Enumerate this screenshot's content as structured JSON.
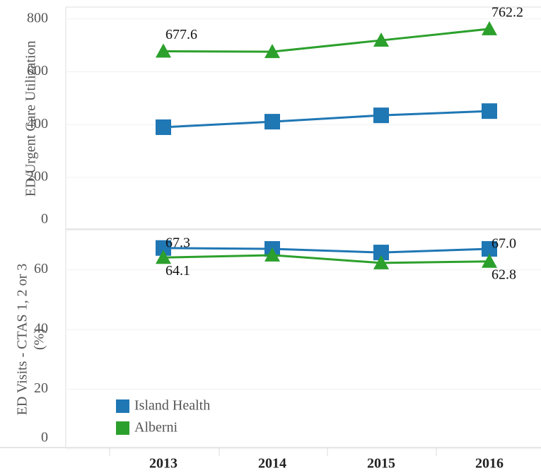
{
  "chart_data": [
    {
      "type": "line",
      "y_label": [
        "ED/Urgent Care Utilization"
      ],
      "ylim": [
        0,
        845
      ],
      "yticks": [
        0,
        200,
        400,
        600,
        800
      ],
      "grid": true,
      "series": [
        {
          "color": "#1f77b4",
          "marker": "square",
          "values": [
            390,
            411,
            435,
            451
          ],
          "value_labels": [
            null,
            null,
            null,
            null
          ]
        },
        {
          "color": "#2ca02c",
          "marker": "triangle",
          "values": [
            677.6,
            676,
            719,
            762.2
          ],
          "value_labels": [
            "677.6",
            null,
            null,
            "762.2"
          ]
        }
      ]
    },
    {
      "type": "line",
      "y_label": [
        "ED Visits - CTAS 1, 2 or 3",
        "(%)"
      ],
      "categories": [
        "2013",
        "2014",
        "2015",
        "2016"
      ],
      "ylim": [
        0,
        73.4
      ],
      "yticks": [
        0,
        20,
        40,
        60
      ],
      "grid": true,
      "legend": "lower left",
      "series": [
        {
          "name": "Island Health",
          "color": "#1f77b4",
          "marker": "square",
          "values": [
            67.3,
            67.0,
            65.8,
            67.0
          ],
          "value_labels": [
            "67.3",
            null,
            null,
            "67.0"
          ]
        },
        {
          "name": "Alberni",
          "color": "#2ca02c",
          "marker": "triangle",
          "values": [
            64.1,
            64.9,
            62.3,
            62.8
          ],
          "value_labels": [
            "64.1",
            null,
            null,
            "62.8"
          ]
        }
      ]
    }
  ]
}
